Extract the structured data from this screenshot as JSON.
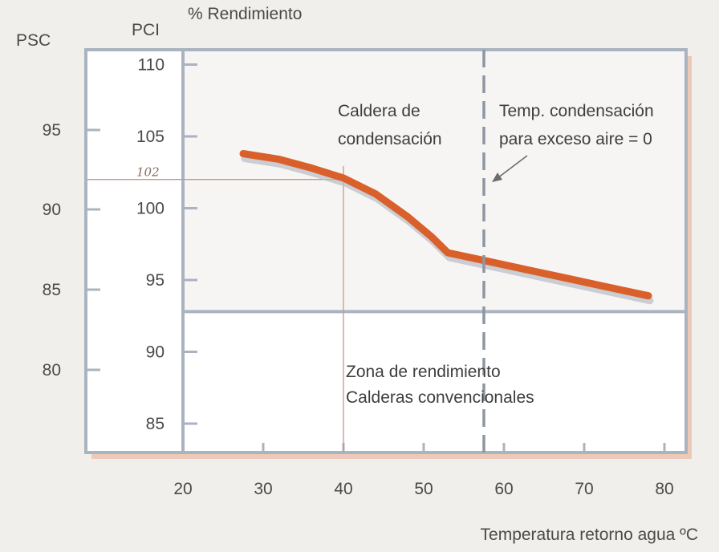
{
  "chart_data": {
    "type": "line",
    "title": "% Rendimiento",
    "xlabel": "Temperatura retorno agua ºC",
    "ylabel_pci": "PCI",
    "ylabel_psc": "PSC",
    "x_ticks": [
      20,
      30,
      40,
      50,
      60,
      70,
      80
    ],
    "xlim": [
      20,
      82
    ],
    "pci_ticks": [
      85,
      90,
      95,
      100,
      105,
      110
    ],
    "psc_ticks": [
      80,
      85,
      90,
      95
    ],
    "ylim_pci": [
      83,
      111
    ],
    "condensing_zone_floor_pci": 92.8,
    "series": [
      {
        "name": "",
        "color": "#d9602a",
        "x": [
          27.5,
          32,
          36,
          40,
          44,
          48,
          51,
          53,
          58,
          63,
          68,
          73,
          78
        ],
        "y": [
          103.8,
          103.4,
          102.8,
          102.1,
          101.0,
          99.4,
          98.0,
          96.9,
          96.3,
          95.7,
          95.1,
          94.5,
          93.9
        ]
      }
    ],
    "condensation_temp_x": 57.5,
    "reference": {
      "x": 40,
      "y": 102,
      "label": "102"
    },
    "annotations": {
      "condensing_boiler": [
        "Caldera de",
        "condensación"
      ],
      "condensation_temp": [
        "Temp. condensación",
        "para exceso aire = 0"
      ],
      "conventional_zone": [
        "Zona de rendimiento",
        "Calderas convencionales"
      ]
    },
    "colors": {
      "frame": "#a9b4c0",
      "curve": "#d9602a",
      "shadow": "#e8c2b0",
      "upper_zone": "#f8f6f4",
      "lower_zone": "#ffffff",
      "background": "#f1efec"
    }
  }
}
